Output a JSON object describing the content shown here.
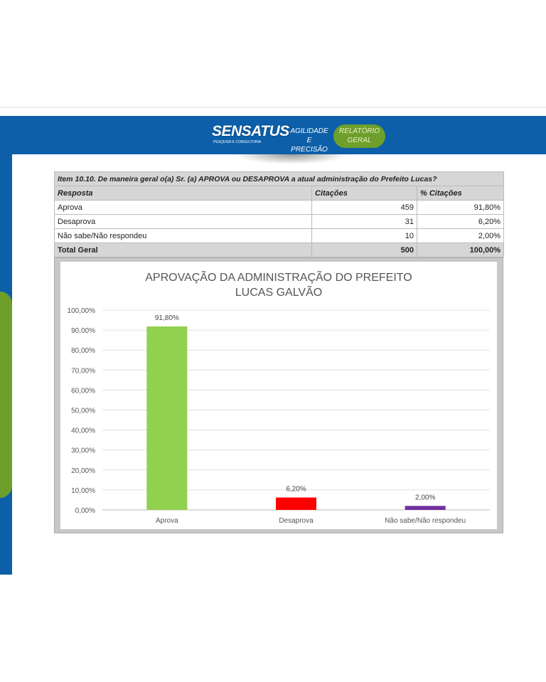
{
  "header": {
    "logo": "SENSATUS",
    "logo_sub": "PESQUISA E CONSULTORIA",
    "tagline": [
      "AGILIDADE E",
      "PRECISÃO"
    ],
    "badge": [
      "RELATÓRIO",
      "GERAL"
    ]
  },
  "table": {
    "title": "Item 10.10. De maneira geral o(a) Sr. (a) APROVA ou DESAPROVA a atual administração do Prefeito Lucas?",
    "headers": [
      "Resposta",
      "Citações",
      "% Citações"
    ],
    "rows": [
      [
        "Aprova",
        "459",
        "91,80%"
      ],
      [
        "Desaprova",
        "31",
        "6,20%"
      ],
      [
        "Não sabe/Não respondeu",
        "10",
        "2,00%"
      ]
    ],
    "total": [
      "Total Geral",
      "500",
      "100,00%"
    ]
  },
  "chart_data": {
    "type": "bar",
    "title_lines": [
      "APROVAÇÃO DA ADMINISTRAÇÃO DO PREFEITO",
      "LUCAS GALVÃO"
    ],
    "categories": [
      "Aprova",
      "Desaprova",
      "Não sabe/Não respondeu"
    ],
    "values": [
      91.8,
      6.2,
      2.0
    ],
    "data_labels": [
      "91,80%",
      "6,20%",
      "2,00%"
    ],
    "colors": [
      "#92d050",
      "#ff0000",
      "#7030a0"
    ],
    "ylim": [
      0,
      100
    ],
    "yticks": [
      "0,00%",
      "10,00%",
      "20,00%",
      "30,00%",
      "40,00%",
      "50,00%",
      "60,00%",
      "70,00%",
      "80,00%",
      "90,00%",
      "100,00%"
    ],
    "grid": true
  }
}
